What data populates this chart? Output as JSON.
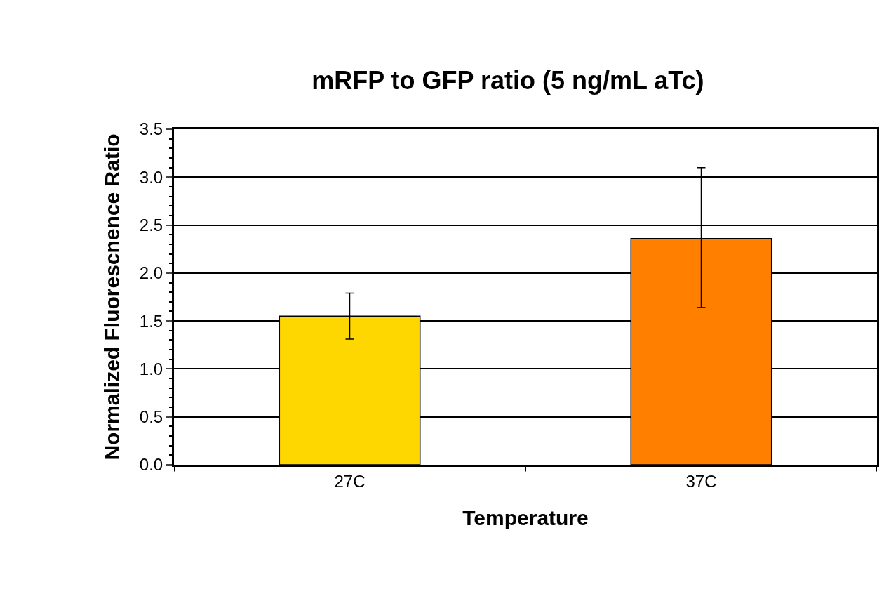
{
  "chart_data": {
    "type": "bar",
    "title": "mRFP to GFP ratio (5 ng/mL aTc)",
    "xlabel": "Temperature",
    "ylabel": "Normalized Fluorescnence Ratio",
    "categories": [
      "27C",
      "37C"
    ],
    "values": [
      1.55,
      2.36
    ],
    "colors": [
      "#ffd700",
      "#ff7f00"
    ],
    "errors": [
      [
        1.31,
        1.79
      ],
      [
        1.64,
        3.1
      ]
    ],
    "ylim": [
      0,
      3.5
    ],
    "yticks": [
      "0.0",
      0.5,
      "1.0",
      1.5,
      "2.0",
      2.5,
      "3.0",
      3.5
    ],
    "grid": "y"
  }
}
